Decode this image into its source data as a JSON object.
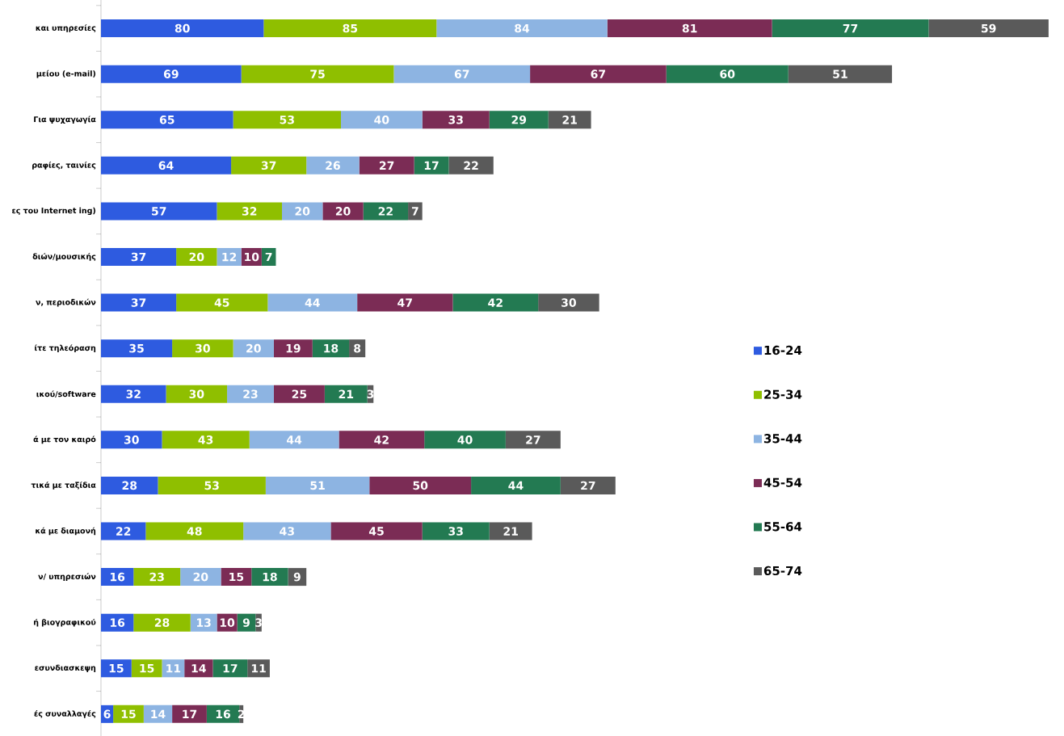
{
  "chart_data": {
    "type": "bar",
    "orientation": "horizontal",
    "stacked": true,
    "data_labels": true,
    "legend": "right",
    "categories": [
      "και υπηρεσίες",
      "μείου (e-mail)",
      "Για ψυχαγωγία",
      "ραφίες, ταινίες",
      "ες του Internet ing)",
      "διών/μουσικής",
      "ν, περιοδικών",
      "ίτε τηλεόραση",
      "ικού/software",
      "ά με τον καιρό",
      "τικά με ταξίδια",
      "κά με διαμονή",
      "ν/ υπηρεσιών",
      "ή βιογραφικού",
      "εσυνδιασκεψη",
      "ές συναλλαγές"
    ],
    "series": [
      {
        "name": "16-24",
        "color": "#2e5be0",
        "values": [
          80,
          69,
          65,
          64,
          57,
          37,
          37,
          35,
          32,
          30,
          28,
          22,
          16,
          16,
          15,
          6
        ]
      },
      {
        "name": "25-34",
        "color": "#8fbf00",
        "values": [
          85,
          75,
          53,
          37,
          32,
          20,
          45,
          30,
          30,
          43,
          53,
          48,
          23,
          28,
          15,
          15
        ]
      },
      {
        "name": "35-44",
        "color": "#8db4e2",
        "values": [
          84,
          67,
          40,
          26,
          20,
          12,
          44,
          20,
          23,
          44,
          51,
          43,
          20,
          13,
          11,
          14
        ]
      },
      {
        "name": "45-54",
        "color": "#7b2c55",
        "values": [
          81,
          67,
          33,
          27,
          20,
          10,
          47,
          19,
          25,
          42,
          50,
          45,
          15,
          10,
          14,
          17
        ]
      },
      {
        "name": "55-64",
        "color": "#237a52",
        "values": [
          77,
          60,
          29,
          17,
          22,
          7,
          42,
          18,
          21,
          40,
          44,
          33,
          18,
          9,
          17,
          16
        ]
      },
      {
        "name": "65-74",
        "color": "#5a5a5a",
        "values": [
          59,
          51,
          21,
          22,
          7,
          null,
          30,
          8,
          3,
          27,
          27,
          21,
          9,
          3,
          11,
          2
        ]
      }
    ]
  }
}
